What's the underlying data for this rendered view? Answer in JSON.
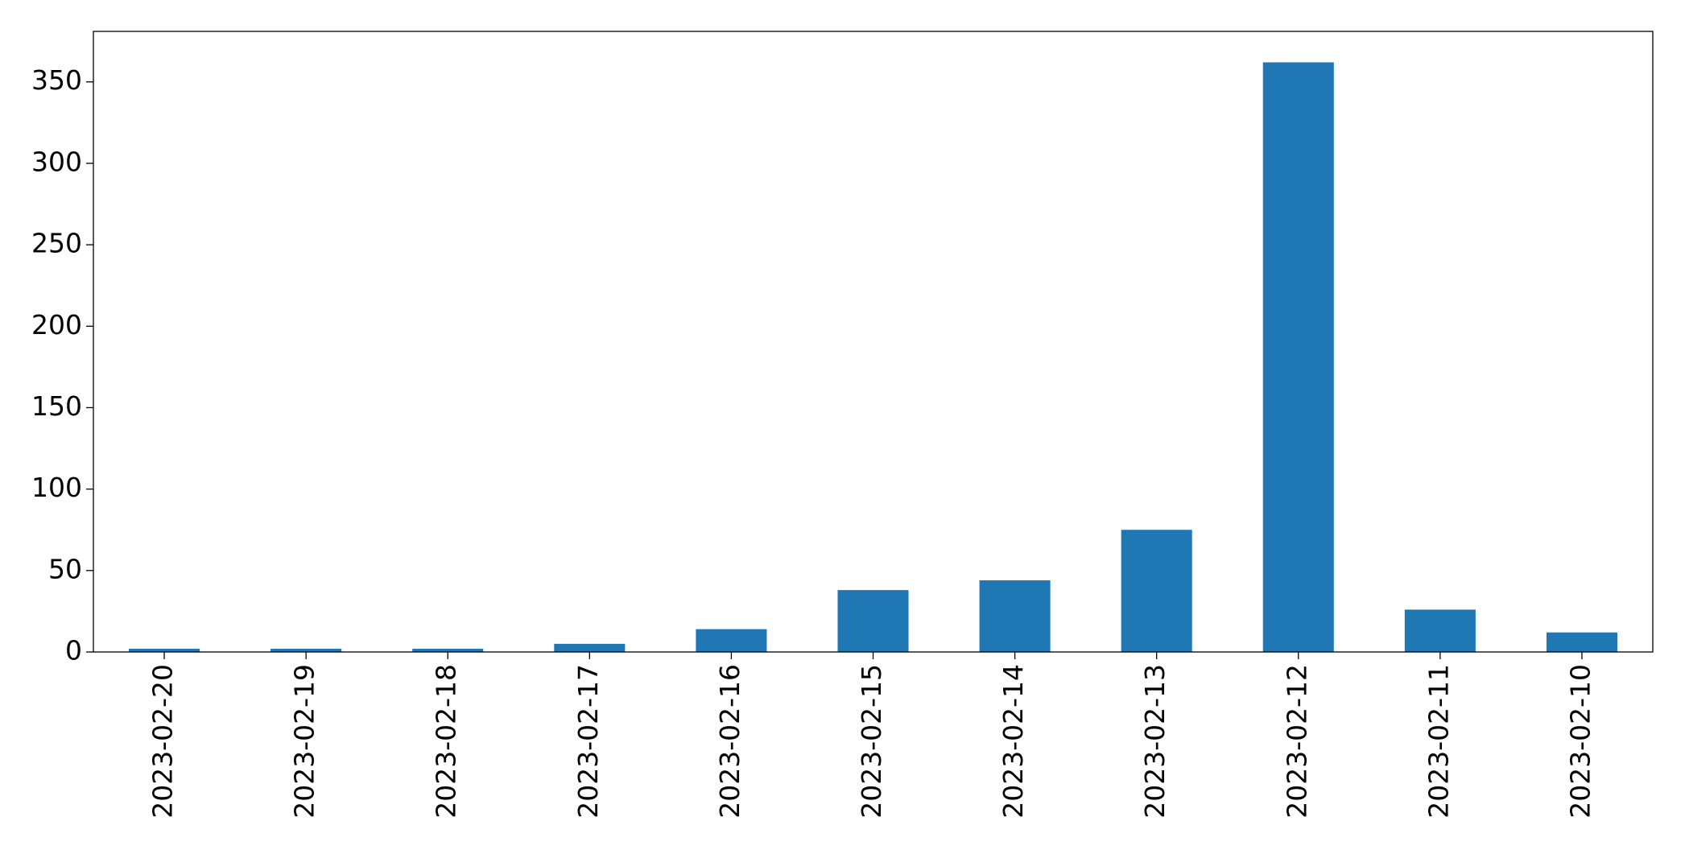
{
  "chart_data": {
    "type": "bar",
    "categories": [
      "2023-02-20",
      "2023-02-19",
      "2023-02-18",
      "2023-02-17",
      "2023-02-16",
      "2023-02-15",
      "2023-02-14",
      "2023-02-13",
      "2023-02-12",
      "2023-02-11",
      "2023-02-10"
    ],
    "values": [
      2,
      2,
      2,
      5,
      14,
      38,
      44,
      75,
      362,
      26,
      12
    ],
    "color": "#1f77b4",
    "ylim": [
      0,
      381
    ],
    "yticks": [
      0,
      50,
      100,
      150,
      200,
      250,
      300,
      350
    ],
    "grid": false
  }
}
